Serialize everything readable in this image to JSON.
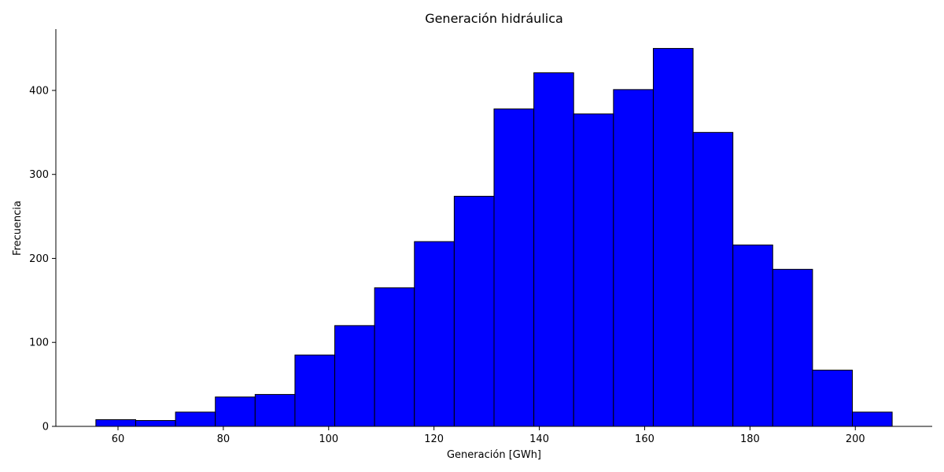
{
  "chart_data": {
    "type": "bar",
    "title": "Generación hidráulica",
    "xlabel": "Generación [GWh]",
    "ylabel": "Frecuencia",
    "bin_edges": [
      55.8,
      63.36,
      70.92,
      78.48,
      86.04,
      93.6,
      101.16,
      108.72,
      116.28,
      123.84,
      131.4,
      138.96,
      146.52,
      154.08,
      161.64,
      169.2,
      176.76,
      184.32,
      191.88,
      199.44,
      207.0
    ],
    "values": [
      8,
      7,
      17,
      35,
      38,
      85,
      120,
      165,
      220,
      274,
      378,
      421,
      372,
      401,
      450,
      350,
      216,
      187,
      67,
      17
    ],
    "xlim": [
      48.2,
      214.6
    ],
    "ylim": [
      0,
      473
    ],
    "x_ticks": [
      60,
      80,
      100,
      120,
      140,
      160,
      180,
      200
    ],
    "y_ticks": [
      0,
      100,
      200,
      300,
      400
    ],
    "bar_color": "#0000ff",
    "edge_color": "#000000",
    "grid": false,
    "legend": "none"
  }
}
